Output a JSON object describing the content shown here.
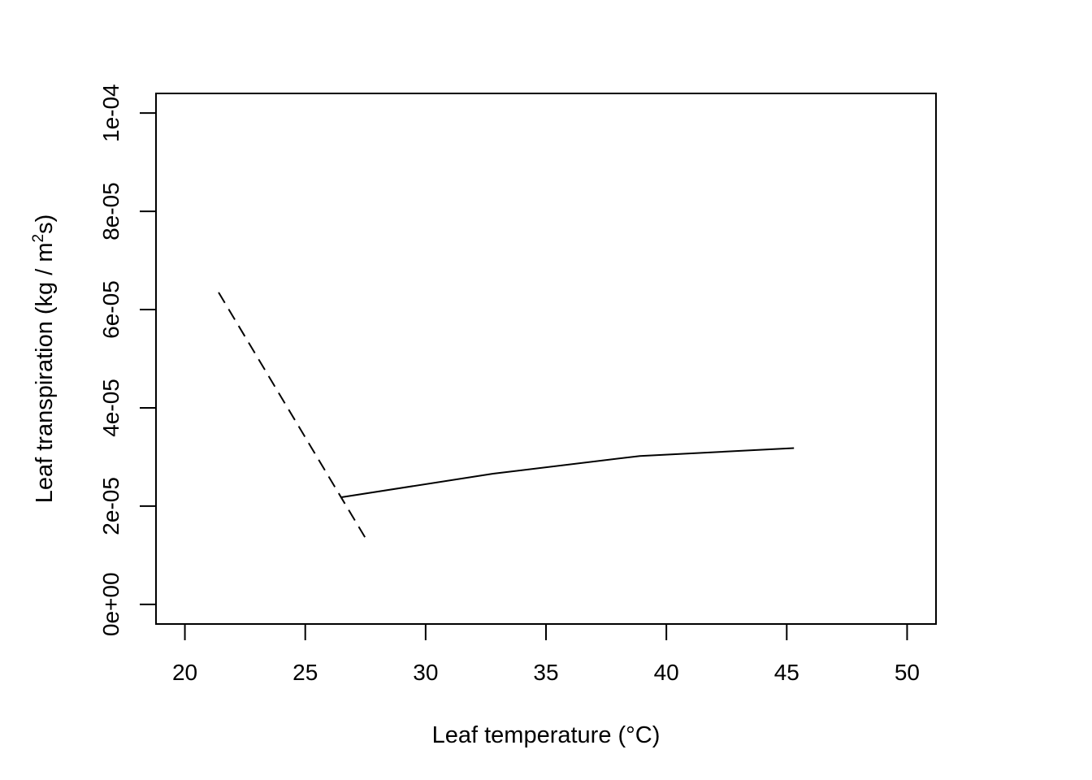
{
  "chart_data": {
    "type": "line",
    "xlabel": "Leaf temperature (°C)",
    "ylabel": {
      "prefix": "Leaf transpiration (kg / m",
      "superscript": "2",
      "suffix": "s)"
    },
    "xlim": [
      18.8,
      51.2
    ],
    "ylim": [
      -4e-06,
      0.000104
    ],
    "xticks": [
      20,
      25,
      30,
      35,
      40,
      45,
      50
    ],
    "xtick_labels": [
      "20",
      "25",
      "30",
      "35",
      "40",
      "45",
      "50"
    ],
    "yticks": [
      0,
      2e-05,
      4e-05,
      6e-05,
      8e-05,
      0.0001
    ],
    "ytick_labels": [
      "0e+00",
      "2e-05",
      "4e-05",
      "6e-05",
      "8e-05",
      "1e-04"
    ],
    "grid": false,
    "legend": "none",
    "series": [
      {
        "style": "dashed",
        "color": "#000000",
        "x": [
          21.4,
          27.5
        ],
        "y": [
          6.35e-05,
          1.35e-05
        ]
      },
      {
        "style": "solid",
        "color": "#000000",
        "x": [
          26.5,
          32.8,
          38.9,
          45.3
        ],
        "y": [
          2.18e-05,
          2.66e-05,
          3.02e-05,
          3.18e-05
        ]
      }
    ]
  }
}
